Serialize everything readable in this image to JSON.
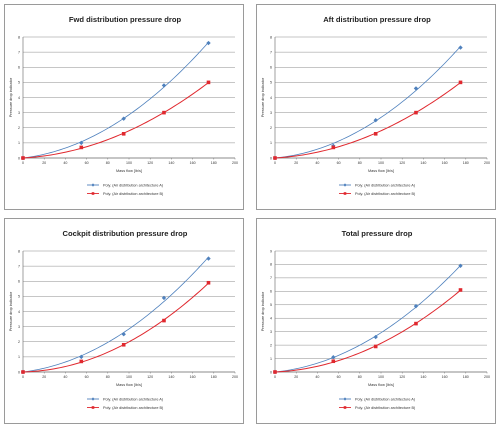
{
  "chart_data": [
    {
      "type": "scatter",
      "title": "Fwd distribution pressure drop",
      "xlabel": "Mass flow [lb/s]",
      "ylabel": "Pressure drop indicator",
      "xlim": [
        0,
        200
      ],
      "ylim": [
        0,
        8
      ],
      "xticks": [
        "0",
        "20",
        "40",
        "60",
        "80",
        "100",
        "120",
        "140",
        "160",
        "180",
        "200"
      ],
      "yticks": [
        "0",
        "1",
        "2",
        "3",
        "4",
        "5",
        "6",
        "7",
        "8"
      ],
      "grid": true,
      "legend_position": "bottom",
      "series": [
        {
          "name": "Poly. (Air distribution architecture A)",
          "color": "#4f81bd",
          "marker": "diamond",
          "x": [
            0,
            55,
            95,
            133,
            175
          ],
          "y": [
            0,
            1.0,
            2.6,
            4.8,
            7.6
          ]
        },
        {
          "name": "Poly. (Air distribution architecture B)",
          "color": "#e0282e",
          "marker": "square",
          "x": [
            0,
            55,
            95,
            133,
            175
          ],
          "y": [
            0,
            0.7,
            1.6,
            3.0,
            5.0
          ]
        }
      ]
    },
    {
      "type": "scatter",
      "title": "Aft distribution pressure drop",
      "xlabel": "Mass flow [lb/s]",
      "ylabel": "Pressure drop indicator",
      "xlim": [
        0,
        200
      ],
      "ylim": [
        0,
        8
      ],
      "xticks": [
        "0",
        "20",
        "40",
        "60",
        "80",
        "100",
        "120",
        "140",
        "160",
        "180",
        "200"
      ],
      "yticks": [
        "0",
        "1",
        "2",
        "3",
        "4",
        "5",
        "6",
        "7",
        "8"
      ],
      "grid": true,
      "legend_position": "bottom",
      "series": [
        {
          "name": "Poly. (Air distribution architecture A)",
          "color": "#4f81bd",
          "marker": "diamond",
          "x": [
            0,
            55,
            95,
            133,
            175
          ],
          "y": [
            0,
            0.8,
            2.5,
            4.6,
            7.3
          ]
        },
        {
          "name": "Poly. (Air distribution architecture B)",
          "color": "#e0282e",
          "marker": "square",
          "x": [
            0,
            55,
            95,
            133,
            175
          ],
          "y": [
            0,
            0.7,
            1.6,
            3.0,
            5.0
          ]
        }
      ]
    },
    {
      "type": "scatter",
      "title": "Cockpit distribution pressure drop",
      "xlabel": "Mass flow [lb/s]",
      "ylabel": "Pressure drop indicator",
      "xlim": [
        0,
        200
      ],
      "ylim": [
        0,
        8
      ],
      "xticks": [
        "0",
        "20",
        "40",
        "60",
        "80",
        "100",
        "120",
        "140",
        "160",
        "180",
        "200"
      ],
      "yticks": [
        "0",
        "1",
        "2",
        "3",
        "4",
        "5",
        "6",
        "7",
        "8"
      ],
      "grid": true,
      "legend_position": "bottom",
      "series": [
        {
          "name": "Poly. (Air distribution architecture A)",
          "color": "#4f81bd",
          "marker": "diamond",
          "x": [
            0,
            55,
            95,
            133,
            175
          ],
          "y": [
            0,
            1.0,
            2.5,
            4.9,
            7.5
          ]
        },
        {
          "name": "Poly. (Air distribution architecture B)",
          "color": "#e0282e",
          "marker": "square",
          "x": [
            0,
            55,
            95,
            133,
            175
          ],
          "y": [
            0,
            0.7,
            1.8,
            3.4,
            5.9
          ]
        }
      ]
    },
    {
      "type": "scatter",
      "title": "Total pressure drop",
      "xlabel": "Mass flow [lb/s]",
      "ylabel": "Pressure drop indicator",
      "xlim": [
        0,
        200
      ],
      "ylim": [
        0,
        9
      ],
      "xticks": [
        "0",
        "20",
        "40",
        "60",
        "80",
        "100",
        "120",
        "140",
        "160",
        "180",
        "200"
      ],
      "yticks": [
        "0",
        "1",
        "2",
        "3",
        "4",
        "5",
        "6",
        "7",
        "8",
        "9"
      ],
      "grid": true,
      "legend_position": "bottom",
      "series": [
        {
          "name": "Poly. (Air distribution architecture A)",
          "color": "#4f81bd",
          "marker": "diamond",
          "x": [
            0,
            55,
            95,
            133,
            175
          ],
          "y": [
            0,
            1.1,
            2.6,
            4.9,
            7.9
          ]
        },
        {
          "name": "Poly. (Air distribution architecture B)",
          "color": "#e0282e",
          "marker": "square",
          "x": [
            0,
            55,
            95,
            133,
            175
          ],
          "y": [
            0,
            0.8,
            1.9,
            3.6,
            6.1
          ]
        }
      ]
    }
  ]
}
